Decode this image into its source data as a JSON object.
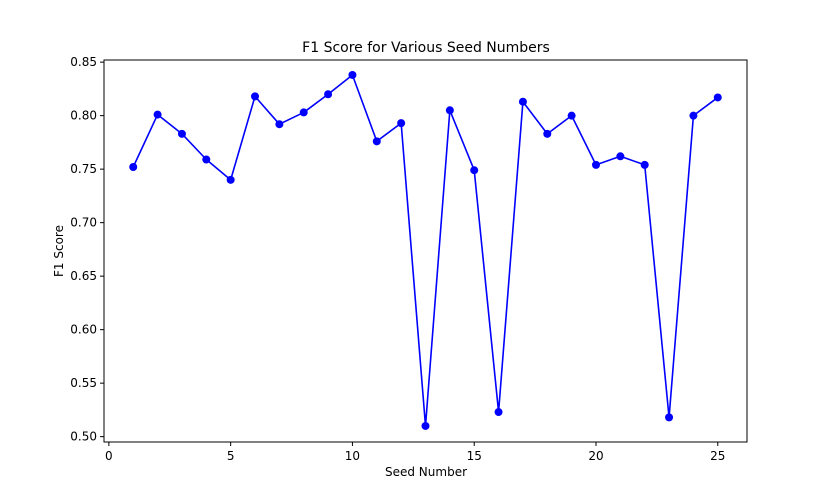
{
  "chart_data": {
    "type": "line",
    "title": "F1 Score for Various Seed Numbers",
    "xlabel": "Seed Number",
    "ylabel": "F1 Score",
    "xlim": [
      -0.2,
      26.2
    ],
    "ylim": [
      0.495,
      0.852
    ],
    "xticks": [
      0,
      5,
      10,
      15,
      20,
      25
    ],
    "xtick_labels": [
      "0",
      "5",
      "10",
      "15",
      "20",
      "25"
    ],
    "yticks": [
      0.5,
      0.55,
      0.6,
      0.65,
      0.7,
      0.75,
      0.8,
      0.85
    ],
    "ytick_labels": [
      "0.50",
      "0.55",
      "0.60",
      "0.65",
      "0.70",
      "0.75",
      "0.80",
      "0.85"
    ],
    "grid": false,
    "series": [
      {
        "color": "#0000ff",
        "marker": "circle",
        "x": [
          1,
          2,
          3,
          4,
          5,
          6,
          7,
          8,
          9,
          10,
          11,
          12,
          13,
          14,
          15,
          16,
          17,
          18,
          19,
          20,
          21,
          22,
          23,
          24,
          25
        ],
        "y": [
          0.752,
          0.801,
          0.783,
          0.759,
          0.74,
          0.818,
          0.792,
          0.803,
          0.82,
          0.838,
          0.776,
          0.793,
          0.51,
          0.805,
          0.749,
          0.523,
          0.813,
          0.783,
          0.8,
          0.754,
          0.762,
          0.754,
          0.518,
          0.8,
          0.817
        ]
      }
    ]
  }
}
